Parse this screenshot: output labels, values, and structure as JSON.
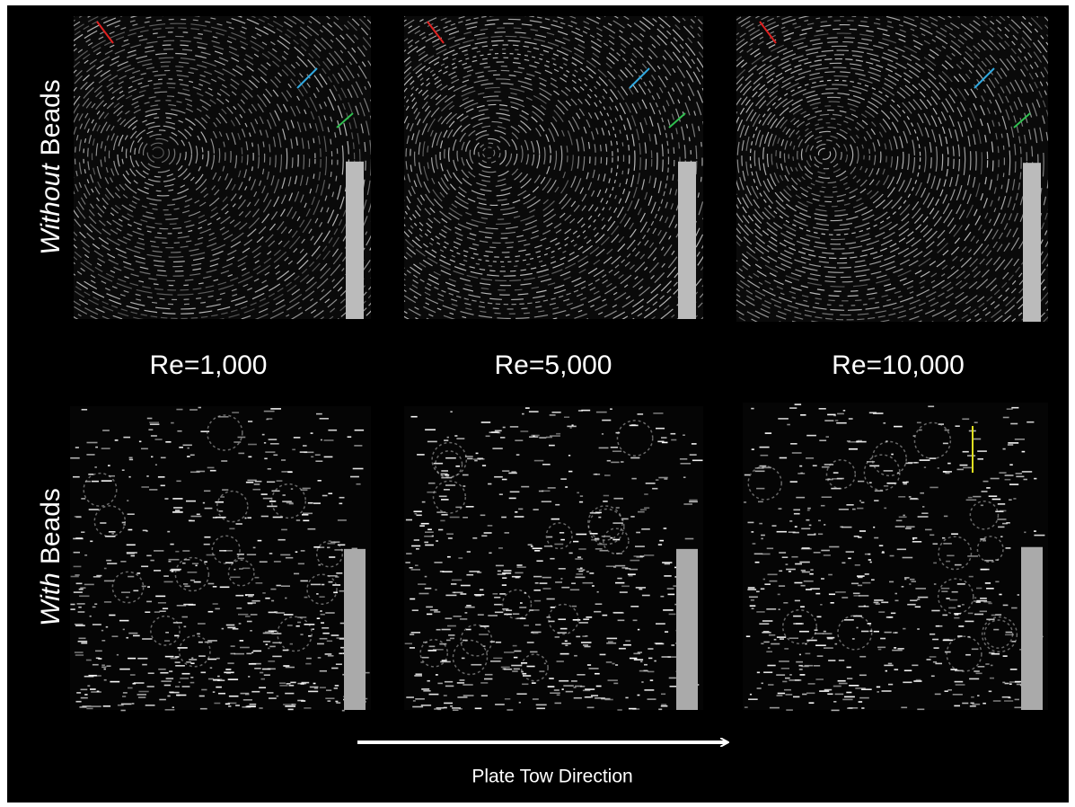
{
  "row_labels": [
    {
      "emphasis": "Without",
      "text": "Beads"
    },
    {
      "emphasis": "With",
      "text": "Beads"
    }
  ],
  "column_labels": [
    "Re=1,000",
    "Re=5,000",
    "Re=10,000"
  ],
  "caption": "Plate Tow Direction"
}
